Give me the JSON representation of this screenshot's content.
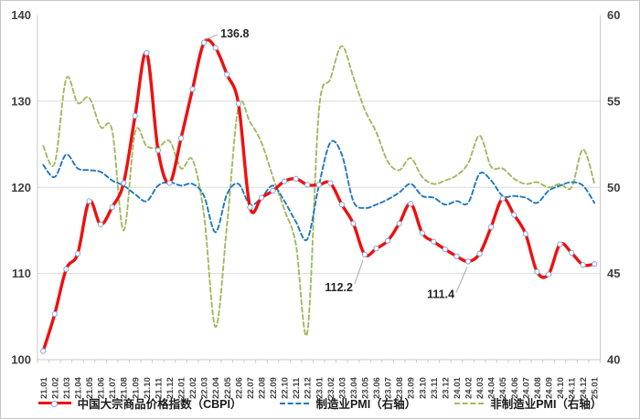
{
  "chart_data": {
    "type": "line",
    "title": "",
    "x_labels": [
      "21.01",
      "21.02",
      "21.03",
      "21.04",
      "21.05",
      "21.06",
      "21.07",
      "21.08",
      "21.09",
      "21.10",
      "21.11",
      "21.12",
      "22.01",
      "22.02",
      "22.03",
      "22.04",
      "22.05",
      "22.06",
      "22.07",
      "22.08",
      "22.09",
      "22.10",
      "22.11",
      "22.12",
      "23.01",
      "23.02",
      "23.03",
      "23.04",
      "23.05",
      "23.06",
      "23.07",
      "23.08",
      "23.09",
      "23.10",
      "23.11",
      "23.12",
      "24.01",
      "24.02",
      "24.03",
      "24.04",
      "24.05",
      "24.06",
      "24.07",
      "24.08",
      "24.09",
      "24.10",
      "24.11",
      "24.12",
      "25.01"
    ],
    "left_axis": {
      "min": 100,
      "max": 140,
      "ticks": [
        100,
        110,
        120,
        130,
        140
      ]
    },
    "right_axis": {
      "min": 40,
      "max": 60,
      "ticks": [
        40,
        45,
        50,
        55,
        60
      ]
    },
    "grid": true,
    "legend_position": "bottom",
    "series": [
      {
        "name": "中国大宗商品价格指数（CBPI）",
        "axis": "left",
        "color": "#ee1010",
        "line": "solid",
        "marker": "circle",
        "values": [
          101.0,
          105.3,
          110.5,
          112.3,
          118.4,
          115.7,
          117.7,
          120.5,
          128.3,
          135.6,
          124.3,
          120.5,
          125.7,
          131.4,
          136.8,
          136.2,
          133.1,
          129.7,
          117.7,
          118.8,
          119.6,
          120.7,
          121.0,
          120.3,
          120.3,
          120.5,
          118.0,
          115.8,
          112.2,
          112.9,
          113.8,
          115.8,
          118.1,
          114.7,
          113.7,
          112.8,
          112.0,
          111.4,
          112.3,
          115.4,
          118.7,
          116.8,
          114.6,
          110.2,
          109.9,
          113.4,
          112.4,
          111.0,
          111.1
        ]
      },
      {
        "name": "制造业PMI（右轴）",
        "axis": "right",
        "color": "#1e78be",
        "line": "dashed",
        "marker": "none",
        "values": [
          51.3,
          50.6,
          51.9,
          51.1,
          51.0,
          50.9,
          50.4,
          50.1,
          49.6,
          49.2,
          50.1,
          50.3,
          50.1,
          50.2,
          49.5,
          47.4,
          49.6,
          50.2,
          49.0,
          49.4,
          50.1,
          49.2,
          48.0,
          47.0,
          50.1,
          52.6,
          51.9,
          49.2,
          48.8,
          49.0,
          49.3,
          49.7,
          50.2,
          49.5,
          49.4,
          49.0,
          49.2,
          49.1,
          50.8,
          50.4,
          49.5,
          49.5,
          49.4,
          49.1,
          49.8,
          50.1,
          50.3,
          50.1,
          49.1
        ]
      },
      {
        "name": "非制造业PMI（右轴）",
        "axis": "right",
        "color": "#a2b960",
        "line": "dashed",
        "marker": "none",
        "values": [
          52.4,
          51.4,
          56.3,
          54.9,
          55.2,
          53.5,
          53.3,
          47.5,
          53.2,
          52.4,
          52.3,
          52.7,
          51.1,
          51.6,
          48.4,
          41.9,
          47.8,
          54.7,
          53.8,
          52.6,
          50.6,
          48.7,
          46.7,
          41.6,
          54.4,
          56.3,
          58.2,
          56.4,
          54.5,
          53.2,
          51.5,
          51.0,
          51.7,
          50.6,
          50.2,
          50.4,
          50.7,
          51.4,
          53.0,
          51.2,
          51.1,
          50.5,
          50.2,
          50.3,
          50.0,
          50.2,
          50.0,
          52.2,
          50.2
        ]
      }
    ],
    "annotations": [
      {
        "text": "136.8",
        "x_label": "22.03",
        "value": 136.8
      },
      {
        "text": "112.2",
        "x_label": "23.05",
        "value": 112.2
      },
      {
        "text": "111.4",
        "x_label": "24.02",
        "value": 111.4
      }
    ]
  },
  "colors": {
    "grid": "#dcdcdc",
    "axis": "#c9c9c9",
    "tick_label": "#3f3f3f",
    "annotation_text": "#262626",
    "leader_line": "#a6a6a6",
    "marker_fill": "#ffffff",
    "marker_edge": "#8caadc",
    "background": "#ffffff"
  }
}
